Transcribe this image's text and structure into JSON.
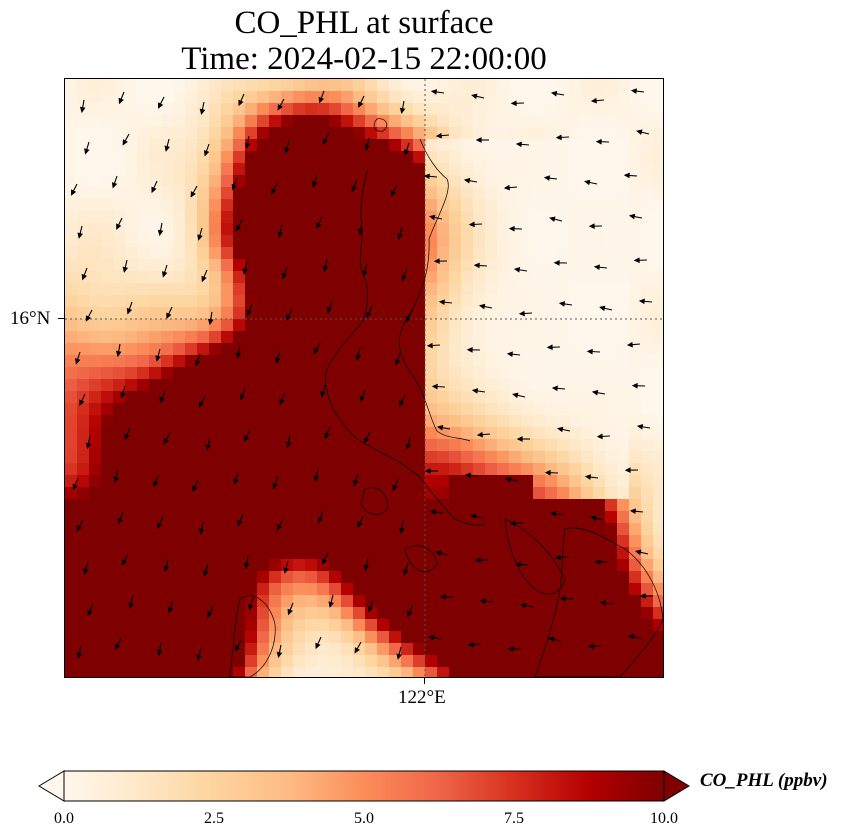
{
  "title": {
    "line1": "CO_PHL at surface",
    "line2": "Time: 2024-02-15 22:00:00"
  },
  "axes": {
    "lat_label": "16°N",
    "lon_label": "122°E"
  },
  "colorbar": {
    "label": "CO_PHL (ppbv)",
    "ticks": [
      "0.0",
      "2.5",
      "5.0",
      "7.5",
      "10.0"
    ],
    "min": 0,
    "max": 10,
    "extend": "both",
    "colormap": "OrRd",
    "stops": [
      "#fff7ec",
      "#fee8c8",
      "#fdd49e",
      "#fdbb84",
      "#fc8d59",
      "#ef6548",
      "#d7301f",
      "#b30000",
      "#7f0000"
    ]
  },
  "map": {
    "land_color": "#fdf3e4",
    "coastline_color": "#000000",
    "gridline_style": "dotted",
    "wind_vectors": "on"
  }
}
